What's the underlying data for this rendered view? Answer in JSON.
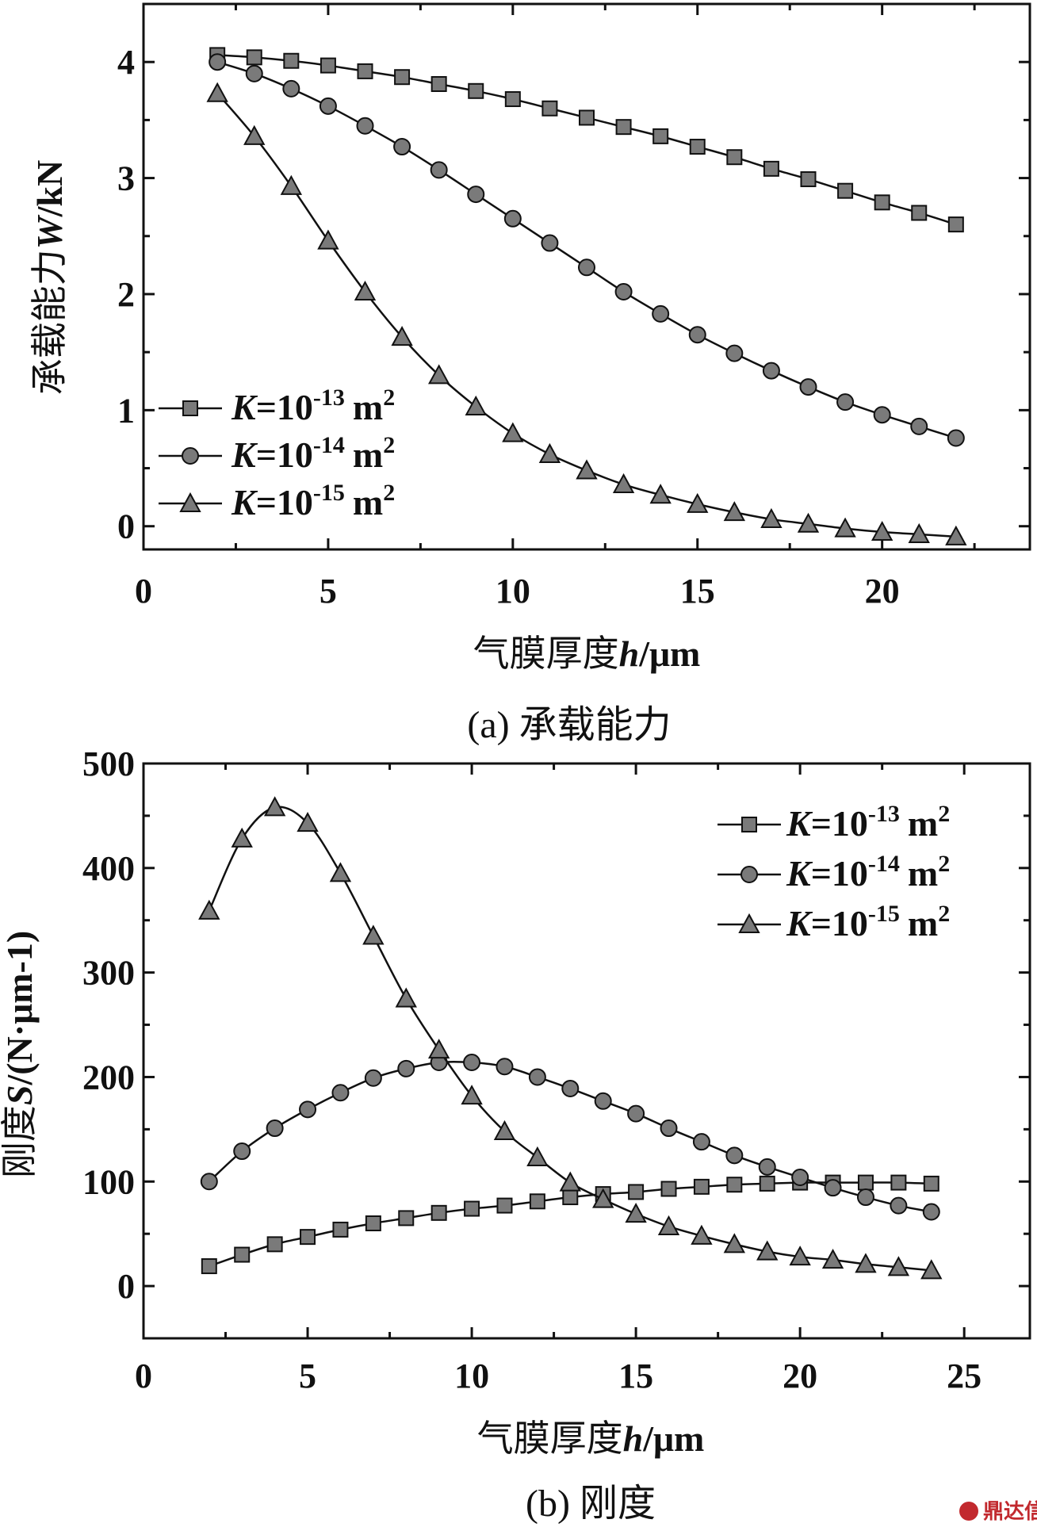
{
  "chart_data": [
    {
      "id": "a",
      "type": "line",
      "caption": "(a) 承载能力",
      "xlabel": "气膜厚度h/μm",
      "xlabel_parts": {
        "prefix": "气膜厚度",
        "var": "h",
        "unit": "/μm"
      },
      "ylabel": "承载能力W/kN",
      "ylabel_parts": {
        "prefix": "承载能力",
        "var": "W",
        "unit": "/kN"
      },
      "xlim": [
        0,
        24
      ],
      "ylim": [
        -0.2,
        4.5
      ],
      "xticks": [
        0,
        5,
        10,
        15,
        20
      ],
      "yticks": [
        0,
        1,
        2,
        3,
        4
      ],
      "legend_position": "bottom-left",
      "grid": false,
      "x": [
        2,
        3,
        4,
        5,
        6,
        7,
        8,
        9,
        10,
        11,
        12,
        13,
        14,
        15,
        16,
        17,
        18,
        19,
        20,
        21,
        22
      ],
      "series": [
        {
          "name": "K=10-13 m2",
          "marker": "square",
          "values": [
            4.06,
            4.04,
            4.01,
            3.97,
            3.92,
            3.87,
            3.81,
            3.75,
            3.68,
            3.6,
            3.52,
            3.44,
            3.36,
            3.27,
            3.18,
            3.08,
            2.99,
            2.89,
            2.79,
            2.7,
            2.6
          ]
        },
        {
          "name": "K=10-14 m2",
          "marker": "circle",
          "values": [
            4.0,
            3.9,
            3.77,
            3.62,
            3.45,
            3.27,
            3.07,
            2.86,
            2.65,
            2.44,
            2.23,
            2.02,
            1.83,
            1.65,
            1.49,
            1.34,
            1.2,
            1.07,
            0.96,
            0.86,
            0.76
          ]
        },
        {
          "name": "K=10-15 m2",
          "marker": "triangle",
          "values": [
            3.73,
            3.36,
            2.93,
            2.46,
            2.02,
            1.63,
            1.3,
            1.03,
            0.8,
            0.62,
            0.48,
            0.36,
            0.27,
            0.19,
            0.12,
            0.06,
            0.02,
            -0.02,
            -0.05,
            -0.07,
            -0.09
          ]
        }
      ]
    },
    {
      "id": "b",
      "type": "line",
      "caption": "(b) 刚度",
      "xlabel": "气膜厚度h/μm",
      "xlabel_parts": {
        "prefix": "气膜厚度",
        "var": "h",
        "unit": "/μm"
      },
      "ylabel": "刚度S/(N·μm-1)",
      "ylabel_parts": {
        "prefix": "刚度",
        "var": "S",
        "unit": "/(N·μm-1)"
      },
      "xlim": [
        0,
        27
      ],
      "ylim": [
        -50,
        500
      ],
      "xticks": [
        0,
        5,
        10,
        15,
        20,
        25
      ],
      "yticks": [
        0,
        100,
        200,
        300,
        400,
        500
      ],
      "legend_position": "top-right",
      "grid": false,
      "x": [
        2,
        3,
        4,
        5,
        6,
        7,
        8,
        9,
        10,
        11,
        12,
        13,
        14,
        15,
        16,
        17,
        18,
        19,
        20,
        21,
        22,
        23,
        24
      ],
      "series": [
        {
          "name": "K=10-13 m2",
          "marker": "square",
          "values": [
            19,
            30,
            40,
            47,
            54,
            60,
            65,
            70,
            74,
            77,
            81,
            85,
            88,
            90,
            93,
            95,
            97,
            98,
            99,
            99,
            99,
            99,
            98
          ]
        },
        {
          "name": "K=10-14 m2",
          "marker": "circle",
          "values": [
            100,
            129,
            151,
            169,
            185,
            199,
            208,
            214,
            214,
            210,
            200,
            189,
            177,
            165,
            151,
            138,
            125,
            114,
            104,
            94,
            85,
            77,
            71
          ]
        },
        {
          "name": "K=10-15 m2",
          "marker": "triangle",
          "values": [
            359,
            428,
            458,
            443,
            395,
            335,
            275,
            226,
            182,
            148,
            123,
            99,
            83,
            69,
            57,
            48,
            40,
            33,
            28,
            25,
            21,
            18,
            15
          ]
        }
      ]
    }
  ],
  "legend_labels": {
    "var": "K",
    "eq": "=10",
    "unit": "m",
    "power": "2",
    "exponents": [
      "-13",
      "-14",
      "-15"
    ]
  },
  "watermark": {
    "text": "鼎达信"
  }
}
